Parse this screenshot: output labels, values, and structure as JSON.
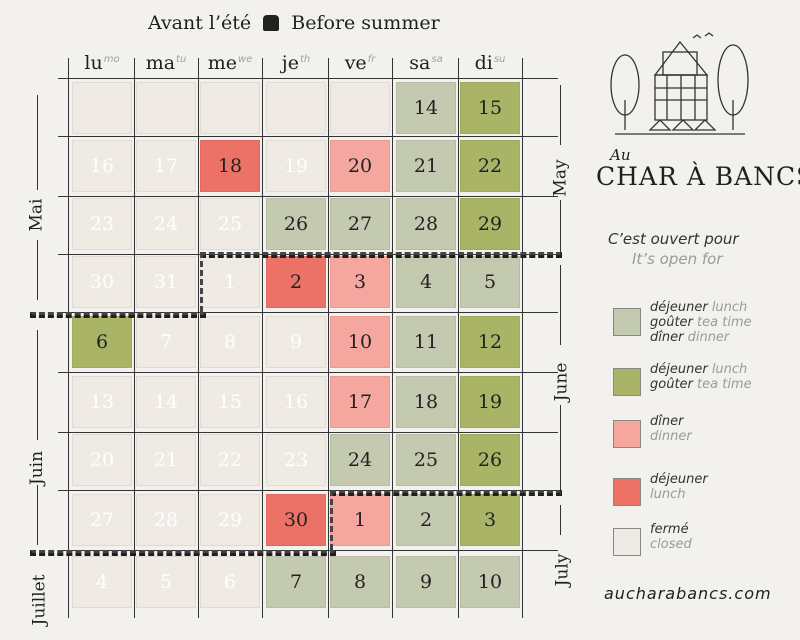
{
  "title": {
    "fr": "Avant l’été",
    "en": "Before summer"
  },
  "days": [
    {
      "fr": "lu",
      "en": "mo"
    },
    {
      "fr": "ma",
      "en": "tu"
    },
    {
      "fr": "me",
      "en": "we"
    },
    {
      "fr": "je",
      "en": "th"
    },
    {
      "fr": "ve",
      "en": "fr"
    },
    {
      "fr": "sa",
      "en": "sa"
    },
    {
      "fr": "di",
      "en": "su"
    }
  ],
  "months": {
    "mai": "Mai",
    "may": "May",
    "juin": "Juin",
    "june": "June",
    "juillet": "Juillet",
    "july": "July"
  },
  "weeks": [
    [
      {
        "d": "",
        "s": "empty"
      },
      {
        "d": "",
        "s": "empty"
      },
      {
        "d": "",
        "s": "empty"
      },
      {
        "d": "",
        "s": "empty"
      },
      {
        "d": "",
        "s": "empty"
      },
      {
        "d": "14",
        "s": "all"
      },
      {
        "d": "15",
        "s": "lt"
      }
    ],
    [
      {
        "d": "16",
        "s": "closed"
      },
      {
        "d": "17",
        "s": "closed"
      },
      {
        "d": "18",
        "s": "lun"
      },
      {
        "d": "19",
        "s": "closed"
      },
      {
        "d": "20",
        "s": "din"
      },
      {
        "d": "21",
        "s": "all"
      },
      {
        "d": "22",
        "s": "lt"
      }
    ],
    [
      {
        "d": "23",
        "s": "closed"
      },
      {
        "d": "24",
        "s": "closed"
      },
      {
        "d": "25",
        "s": "closed"
      },
      {
        "d": "26",
        "s": "all"
      },
      {
        "d": "27",
        "s": "all"
      },
      {
        "d": "28",
        "s": "all"
      },
      {
        "d": "29",
        "s": "lt"
      }
    ],
    [
      {
        "d": "30",
        "s": "closed"
      },
      {
        "d": "31",
        "s": "closed"
      },
      {
        "d": "1",
        "s": "closed"
      },
      {
        "d": "2",
        "s": "lun"
      },
      {
        "d": "3",
        "s": "din"
      },
      {
        "d": "4",
        "s": "all"
      },
      {
        "d": "5",
        "s": "all"
      }
    ],
    [
      {
        "d": "6",
        "s": "lt"
      },
      {
        "d": "7",
        "s": "closed"
      },
      {
        "d": "8",
        "s": "closed"
      },
      {
        "d": "9",
        "s": "closed"
      },
      {
        "d": "10",
        "s": "din"
      },
      {
        "d": "11",
        "s": "all"
      },
      {
        "d": "12",
        "s": "lt"
      }
    ],
    [
      {
        "d": "13",
        "s": "closed"
      },
      {
        "d": "14",
        "s": "closed"
      },
      {
        "d": "15",
        "s": "closed"
      },
      {
        "d": "16",
        "s": "closed"
      },
      {
        "d": "17",
        "s": "din"
      },
      {
        "d": "18",
        "s": "all"
      },
      {
        "d": "19",
        "s": "lt"
      }
    ],
    [
      {
        "d": "20",
        "s": "closed"
      },
      {
        "d": "21",
        "s": "closed"
      },
      {
        "d": "22",
        "s": "closed"
      },
      {
        "d": "23",
        "s": "closed"
      },
      {
        "d": "24",
        "s": "all"
      },
      {
        "d": "25",
        "s": "all"
      },
      {
        "d": "26",
        "s": "lt"
      }
    ],
    [
      {
        "d": "27",
        "s": "closed"
      },
      {
        "d": "28",
        "s": "closed"
      },
      {
        "d": "29",
        "s": "closed"
      },
      {
        "d": "30",
        "s": "lun"
      },
      {
        "d": "1",
        "s": "din"
      },
      {
        "d": "2",
        "s": "all"
      },
      {
        "d": "3",
        "s": "lt"
      }
    ],
    [
      {
        "d": "4",
        "s": "closed"
      },
      {
        "d": "5",
        "s": "closed"
      },
      {
        "d": "6",
        "s": "closed"
      },
      {
        "d": "7",
        "s": "all"
      },
      {
        "d": "8",
        "s": "all"
      },
      {
        "d": "9",
        "s": "all"
      },
      {
        "d": "10",
        "s": "all"
      }
    ]
  ],
  "brand": {
    "au": "Au",
    "name": "CHAR À BANCS"
  },
  "open_for": {
    "fr": "C’est ouvert pour",
    "en": "It’s open for"
  },
  "legend": [
    {
      "lines": [
        {
          "fr": "déjeuner",
          "en": "lunch"
        },
        {
          "fr": "goûter",
          "en": "tea time"
        },
        {
          "fr": "dîner",
          "en": "dinner"
        }
      ],
      "color": "#c4cab0"
    },
    {
      "lines": [
        {
          "fr": "déjeuner",
          "en": "lunch"
        },
        {
          "fr": "goûter",
          "en": "tea time"
        }
      ],
      "color": "#a9b467"
    },
    {
      "lines": [
        {
          "fr": "dîner",
          "en": ""
        },
        {
          "fr": "",
          "en": "dinner"
        }
      ],
      "color": "#f4a69f"
    },
    {
      "lines": [
        {
          "fr": "déjeuner",
          "en": ""
        },
        {
          "fr": "",
          "en": "lunch"
        }
      ],
      "color": "#ec7268"
    },
    {
      "lines": [
        {
          "fr": "fermé",
          "en": ""
        },
        {
          "fr": "",
          "en": "closed"
        }
      ],
      "color": "#efeae3"
    }
  ],
  "website": "aucharabancs.com"
}
